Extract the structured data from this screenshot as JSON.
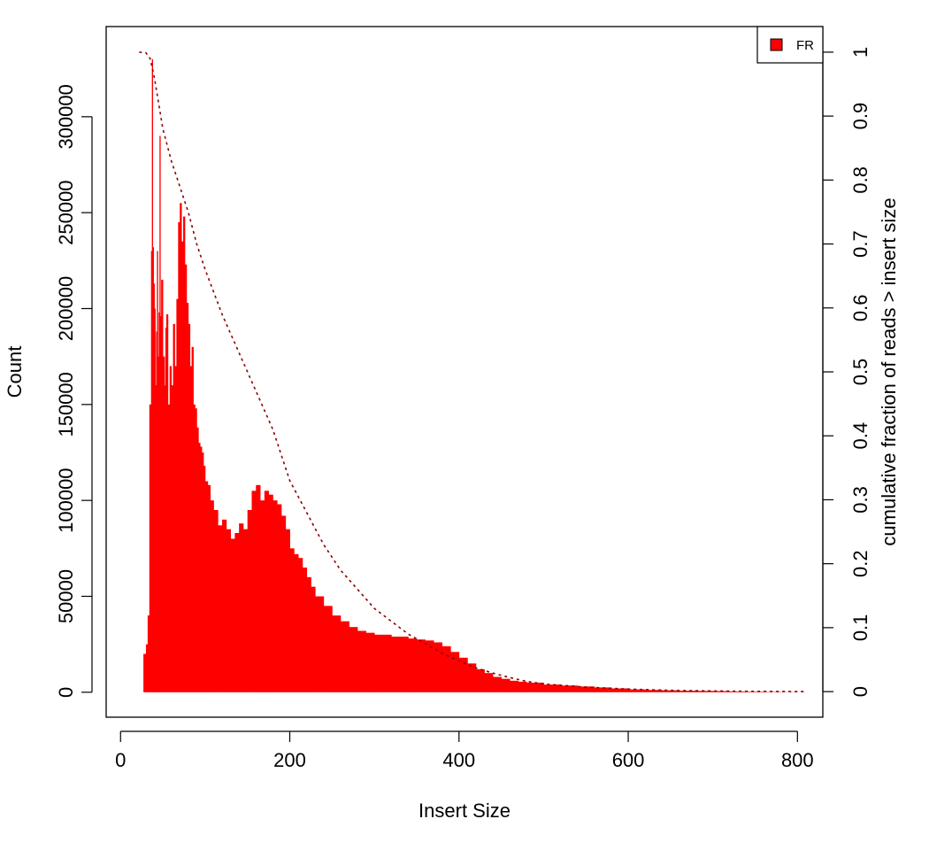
{
  "colors": {
    "bars": "#ff0000",
    "cumulative_line": "#8b0000",
    "axes": "#000000",
    "background": "#ffffff"
  },
  "chart_data": {
    "type": "bar",
    "xlabel": "Insert Size",
    "ylabel": "Count",
    "y2label": "cumulative fraction of reads > insert size",
    "xlim": [
      -17,
      830
    ],
    "ylim": [
      -13000,
      347000
    ],
    "y2lim": [
      -0.04,
      1.04
    ],
    "x_ticks": [
      0,
      200,
      400,
      600,
      800
    ],
    "y_ticks": [
      0,
      50000,
      100000,
      150000,
      200000,
      250000,
      300000
    ],
    "y2_ticks": [
      0,
      0.1,
      0.2,
      0.3,
      0.4,
      0.5,
      0.6,
      0.7,
      0.8,
      0.9,
      1
    ],
    "legend": {
      "position": "top-right",
      "entries": [
        "FR"
      ]
    },
    "series": [
      {
        "name": "FR",
        "kind": "histogram",
        "x": [
          22,
          27,
          30,
          32,
          34,
          36,
          37,
          38,
          39,
          40,
          41,
          42,
          43,
          44,
          45,
          46,
          47,
          48,
          50,
          52,
          53,
          54,
          56,
          58,
          60,
          62,
          64,
          66,
          68,
          70,
          72,
          74,
          76,
          78,
          80,
          82,
          84,
          86,
          88,
          90,
          92,
          94,
          96,
          98,
          100,
          103,
          106,
          110,
          115,
          120,
          125,
          130,
          135,
          140,
          145,
          150,
          155,
          160,
          165,
          170,
          175,
          180,
          185,
          190,
          195,
          200,
          205,
          210,
          215,
          220,
          225,
          230,
          240,
          250,
          260,
          270,
          280,
          290,
          300,
          310,
          320,
          330,
          340,
          350,
          360,
          370,
          380,
          390,
          400,
          410,
          420,
          430,
          440,
          450,
          460,
          470,
          480,
          500,
          520,
          540,
          560,
          580,
          600,
          620,
          640,
          660,
          680,
          700,
          720,
          740,
          760,
          780,
          800,
          810
        ],
        "values": [
          0,
          20000,
          25000,
          40000,
          150000,
          230000,
          330000,
          232000,
          213000,
          200000,
          160000,
          188000,
          230000,
          175000,
          198000,
          290000,
          196000,
          215000,
          175000,
          160000,
          190000,
          197000,
          150000,
          170000,
          160000,
          192000,
          170000,
          205000,
          245000,
          255000,
          235000,
          248000,
          223000,
          203000,
          192000,
          170000,
          180000,
          150000,
          148000,
          138000,
          130000,
          128000,
          125000,
          118000,
          110000,
          108000,
          100000,
          95000,
          87000,
          90000,
          85000,
          80000,
          83000,
          88000,
          85000,
          95000,
          105000,
          108000,
          100000,
          105000,
          103000,
          100000,
          98000,
          92000,
          85000,
          75000,
          72000,
          70000,
          65000,
          60000,
          55000,
          50000,
          45000,
          40000,
          37000,
          34000,
          32000,
          31000,
          30000,
          30000,
          29000,
          29000,
          28000,
          27500,
          27000,
          26000,
          24000,
          21000,
          18000,
          15000,
          12000,
          10000,
          8000,
          7000,
          6000,
          5500,
          5000,
          4000,
          3500,
          3000,
          2500,
          2000,
          1500,
          1200,
          1000,
          800,
          700,
          600,
          400,
          300,
          200,
          100,
          50,
          0
        ]
      },
      {
        "name": "",
        "kind": "cumulative_line",
        "axis": "right",
        "x": [
          22,
          30,
          35,
          40,
          50,
          60,
          70,
          80,
          90,
          100,
          120,
          140,
          160,
          180,
          200,
          220,
          240,
          260,
          280,
          300,
          320,
          340,
          360,
          380,
          400,
          420,
          440,
          460,
          480,
          500,
          550,
          600,
          650,
          700,
          750,
          810
        ],
        "values": [
          1.0,
          0.999,
          0.99,
          0.96,
          0.88,
          0.83,
          0.79,
          0.75,
          0.7,
          0.66,
          0.59,
          0.53,
          0.47,
          0.41,
          0.33,
          0.28,
          0.23,
          0.19,
          0.16,
          0.13,
          0.11,
          0.09,
          0.075,
          0.06,
          0.048,
          0.037,
          0.029,
          0.022,
          0.016,
          0.012,
          0.007,
          0.004,
          0.002,
          0.001,
          0.0005,
          0.0
        ]
      }
    ]
  }
}
